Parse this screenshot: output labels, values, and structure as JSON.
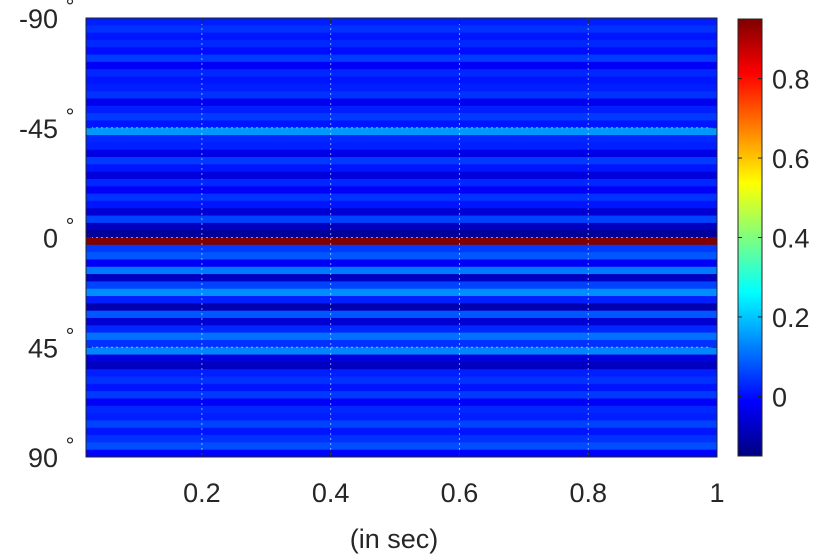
{
  "chart_data": {
    "type": "heatmap",
    "title": "",
    "xlabel": "(in sec)",
    "ylabel": "",
    "xlim": [
      0.02,
      1.0
    ],
    "ylim": [
      -90,
      90
    ],
    "y_direction": "reversed",
    "x_ticks": [
      0.2,
      0.4,
      0.6,
      0.8,
      1.0
    ],
    "x_tick_labels": [
      "0.2",
      "0.4",
      "0.6",
      "0.8",
      "1"
    ],
    "y_ticks": [
      -90,
      -45,
      0,
      45,
      90
    ],
    "y_tick_labels": [
      "-90",
      "-45",
      "0",
      "45",
      "90"
    ],
    "y_tick_suffix": "°",
    "grid": true,
    "colormap": "jet",
    "colorbar": {
      "range": [
        -0.15,
        0.95
      ],
      "ticks": [
        0,
        0.2,
        0.4,
        0.6,
        0.8
      ],
      "tick_labels": [
        "0",
        "0.2",
        "0.4",
        "0.6",
        "0.8"
      ]
    },
    "band_angles": [
      -90,
      -87,
      -84,
      -81,
      -78,
      -75,
      -72,
      -69,
      -66,
      -63,
      -60,
      -57,
      -54,
      -51,
      -48,
      -45,
      -42,
      -39,
      -36,
      -33,
      -30,
      -27,
      -24,
      -21,
      -18,
      -15,
      -12,
      -9,
      -6,
      -3,
      0,
      3,
      6,
      9,
      12,
      15,
      18,
      21,
      24,
      27,
      30,
      33,
      36,
      39,
      42,
      45,
      48,
      51,
      54,
      57,
      60,
      63,
      66,
      69,
      72,
      75,
      78,
      81,
      84,
      87
    ],
    "band_values": [
      0.02,
      0.04,
      0.01,
      0.03,
      0.0,
      0.05,
      -0.02,
      0.03,
      0.01,
      0.02,
      0.04,
      -0.03,
      0.02,
      0.05,
      0.01,
      0.15,
      0.03,
      0.02,
      -0.04,
      0.05,
      0.01,
      -0.05,
      0.03,
      -0.02,
      0.04,
      0.01,
      -0.06,
      0.06,
      -0.08,
      -0.12,
      0.95,
      0.05,
      0.08,
      -0.02,
      0.12,
      -0.08,
      0.06,
      0.14,
      0.02,
      -0.1,
      0.08,
      -0.06,
      0.03,
      0.11,
      0.04,
      0.13,
      -0.05,
      -0.08,
      0.02,
      0.04,
      0.01,
      0.05,
      -0.02,
      0.03,
      0.02,
      0.06,
      0.01,
      0.04,
      0.07,
      -0.01
    ]
  }
}
